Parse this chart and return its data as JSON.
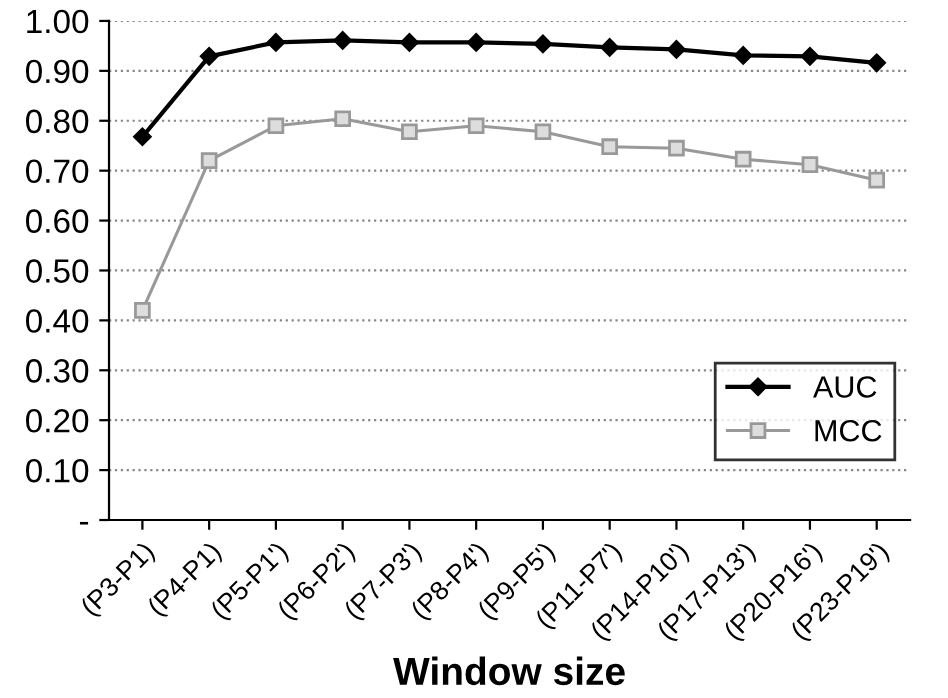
{
  "chart_data": {
    "type": "line",
    "xlabel": "Window size",
    "categories": [
      "(P3-P1)",
      "(P4-P1)",
      "(P5-P1')",
      "(P6-P2')",
      "(P7-P3')",
      "(P8-P4')",
      "(P9-P5')",
      "(P11-P7')",
      "(P14-P10')",
      "(P17-P13')",
      "(P20-P16')",
      "(P23-P19')"
    ],
    "series": [
      {
        "name": "AUC",
        "color": "#000000",
        "marker": "diamond",
        "values": [
          0.768,
          0.929,
          0.957,
          0.961,
          0.957,
          0.957,
          0.954,
          0.947,
          0.943,
          0.931,
          0.929,
          0.916
        ]
      },
      {
        "name": "MCC",
        "color": "#999999",
        "marker": "square",
        "values": [
          0.42,
          0.72,
          0.79,
          0.804,
          0.778,
          0.79,
          0.778,
          0.748,
          0.745,
          0.723,
          0.712,
          0.681
        ]
      }
    ],
    "ylim": [
      0,
      1
    ],
    "yticks": [
      {
        "value": 0,
        "label": "-"
      },
      {
        "value": 0.1,
        "label": "0.10"
      },
      {
        "value": 0.2,
        "label": "0.20"
      },
      {
        "value": 0.3,
        "label": "0.30"
      },
      {
        "value": 0.4,
        "label": "0.40"
      },
      {
        "value": 0.5,
        "label": "0.50"
      },
      {
        "value": 0.6,
        "label": "0.60"
      },
      {
        "value": 0.7,
        "label": "0.70"
      },
      {
        "value": 0.8,
        "label": "0.80"
      },
      {
        "value": 0.9,
        "label": "0.90"
      },
      {
        "value": 1.0,
        "label": "1.00"
      }
    ],
    "grid": "y",
    "legend": "bottom right",
    "line_style": "solid"
  }
}
